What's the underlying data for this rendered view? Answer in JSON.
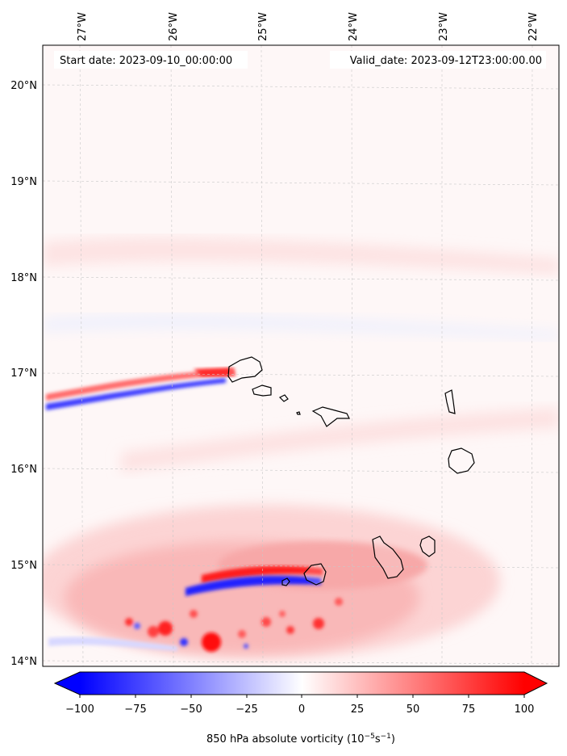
{
  "map": {
    "start_label": "Start date: 2023-09-10_00:00:00",
    "valid_label": "Valid_date: 2023-09-12T23:00:00.00",
    "lon_labels": [
      "27°W",
      "26°W",
      "25°W",
      "24°W",
      "23°W",
      "22°W"
    ],
    "lat_labels": [
      "20°N",
      "19°N",
      "18°N",
      "17°N",
      "16°N",
      "15°N",
      "14°N"
    ],
    "region": {
      "lon_min": -27.4,
      "lon_max": -21.8,
      "lat_min": 13.95,
      "lat_max": 20.45
    },
    "gridlines": true,
    "features": [
      "vorticity band near 16.8°N from 27.4°W to 25.7°W",
      "vorticity couplet near 14.9°N from 26.3°W to 24.3°W",
      "scattered cyclonic vorticity near 14.3°N, 26°W–24.5°W"
    ]
  },
  "colorbar": {
    "label_main": "850 hPa absolute vorticity (10",
    "label_exp1": "−5",
    "label_mid": "s",
    "label_exp2": "−1",
    "label_end": ")",
    "ticks": [
      "−100",
      "−75",
      "−50",
      "−25",
      "0",
      "25",
      "50",
      "75",
      "100"
    ],
    "range": [
      -100,
      100
    ],
    "extend": "both",
    "colormap": "bwr",
    "colors": {
      "negative": "#0000ff",
      "zero": "#ffffff",
      "positive": "#ff0000"
    }
  }
}
